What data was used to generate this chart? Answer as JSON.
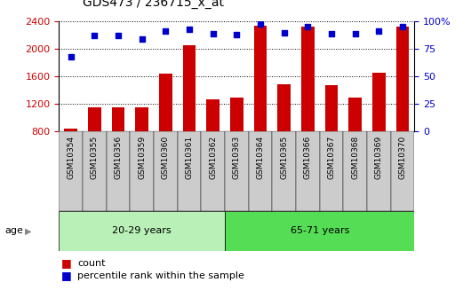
{
  "title": "GDS473 / 236715_x_at",
  "samples": [
    "GSM10354",
    "GSM10355",
    "GSM10356",
    "GSM10359",
    "GSM10360",
    "GSM10361",
    "GSM10362",
    "GSM10363",
    "GSM10364",
    "GSM10365",
    "GSM10366",
    "GSM10367",
    "GSM10368",
    "GSM10369",
    "GSM10370"
  ],
  "counts": [
    840,
    1155,
    1155,
    1155,
    1640,
    2060,
    1270,
    1290,
    2340,
    1490,
    2320,
    1480,
    1300,
    1660,
    2320
  ],
  "percentile_ranks": [
    68,
    87,
    87,
    84,
    91,
    93,
    89,
    88,
    98,
    90,
    95,
    89,
    89,
    91,
    95
  ],
  "group1_label": "20-29 years",
  "group2_label": "65-71 years",
  "group1_count": 7,
  "group2_count": 8,
  "ylim_left": [
    800,
    2400
  ],
  "ylim_right": [
    0,
    100
  ],
  "yticks_left": [
    800,
    1200,
    1600,
    2000,
    2400
  ],
  "yticks_right": [
    0,
    25,
    50,
    75,
    100
  ],
  "ytick_labels_right": [
    "0",
    "25",
    "50",
    "75",
    "100%"
  ],
  "bar_color": "#cc0000",
  "dot_color": "#0000cc",
  "group1_bg": "#b8f0b8",
  "group2_bg": "#55dd55",
  "tick_label_bg": "#cccccc",
  "bar_width": 0.55,
  "legend_count_label": "count",
  "legend_pct_label": "percentile rank within the sample",
  "age_label": "age"
}
